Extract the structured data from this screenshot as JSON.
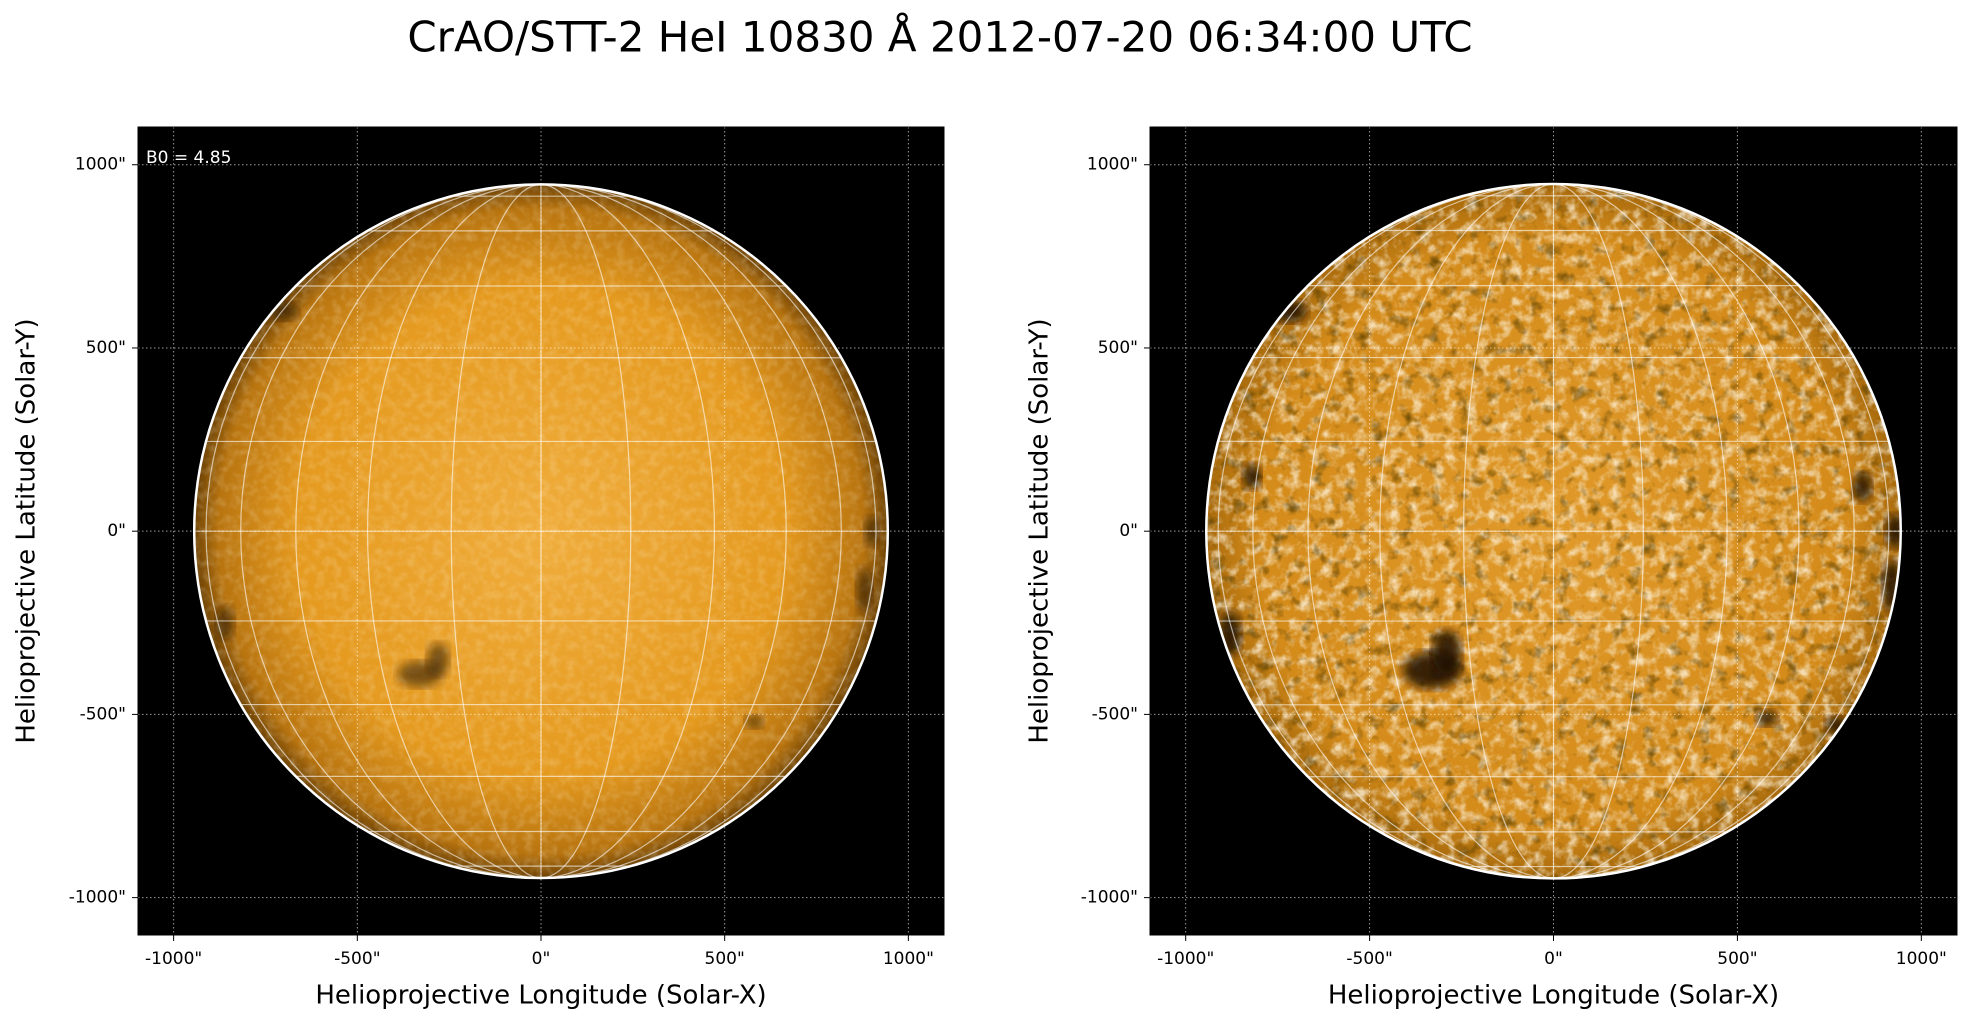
{
  "title": "CrAO/STT-2 HeI 10830 Å 2012-07-20 06:34:00 UTC",
  "chart_data": [
    {
      "type": "image",
      "annotation": "B0 = 4.85",
      "xlabel": "Helioprojective Longitude (Solar-X)",
      "ylabel": "Helioprojective Latitude (Solar-Y)",
      "xlim": [
        -1097,
        1097
      ],
      "ylim": [
        -1102,
        1103
      ],
      "solar_radius": 944,
      "grid": true,
      "xticks": [
        {
          "value": -1000,
          "label": "-1000\""
        },
        {
          "value": -500,
          "label": "-500\""
        },
        {
          "value": 0,
          "label": "0\""
        },
        {
          "value": 500,
          "label": "500\""
        },
        {
          "value": 1000,
          "label": "1000\""
        }
      ],
      "yticks": [
        {
          "value": -1000,
          "label": "-1000\""
        },
        {
          "value": -500,
          "label": "-500\""
        },
        {
          "value": 0,
          "label": "0\""
        },
        {
          "value": 500,
          "label": "500\""
        },
        {
          "value": 1000,
          "label": "1000\""
        }
      ]
    },
    {
      "type": "image",
      "xlabel": "Helioprojective Longitude (Solar-X)",
      "ylabel": "Helioprojective Latitude (Solar-Y)",
      "xlim": [
        -1097,
        1097
      ],
      "ylim": [
        -1102,
        1103
      ],
      "solar_radius": 944,
      "grid": true,
      "xticks": [
        {
          "value": -1000,
          "label": "-1000\""
        },
        {
          "value": -500,
          "label": "-500\""
        },
        {
          "value": 0,
          "label": "0\""
        },
        {
          "value": 500,
          "label": "500\""
        },
        {
          "value": 1000,
          "label": "1000\""
        }
      ],
      "yticks": [
        {
          "value": -1000,
          "label": "-1000\""
        },
        {
          "value": -500,
          "label": "-500\""
        },
        {
          "value": 0,
          "label": "0\""
        },
        {
          "value": 500,
          "label": "500\""
        },
        {
          "value": 1000,
          "label": "1000\""
        }
      ]
    }
  ]
}
